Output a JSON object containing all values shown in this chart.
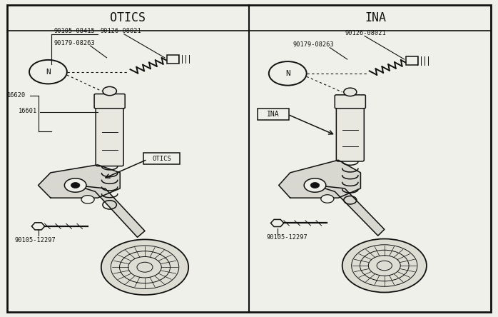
{
  "title_left": "OTICS",
  "title_right": "INA",
  "bg_color": "#f0f0ea",
  "border_color": "#111111",
  "line_color": "#111111",
  "fig_width": 6.98,
  "fig_height": 4.44,
  "dpi": 100
}
